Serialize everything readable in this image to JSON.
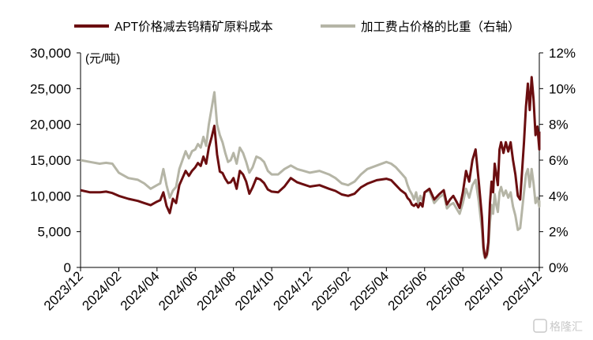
{
  "chart_data": {
    "type": "line",
    "legend": {
      "placement": "top",
      "entries": [
        "APT价格减去钨精矿原料成本",
        "加工费占价格的比重（右轴）"
      ]
    },
    "unit_label": "(元/吨)",
    "left_axis": {
      "ylim": [
        0,
        30000
      ],
      "ticks": [
        0,
        5000,
        10000,
        15000,
        20000,
        25000,
        30000
      ],
      "tick_labels": [
        "0",
        "5,000",
        "10,000",
        "15,000",
        "20,000",
        "25,000",
        "30,000"
      ]
    },
    "right_axis": {
      "ylim": [
        0,
        12
      ],
      "ticks": [
        0,
        2,
        4,
        6,
        8,
        10,
        12
      ],
      "tick_labels": [
        "0%",
        "2%",
        "4%",
        "6%",
        "8%",
        "10%",
        "12%"
      ]
    },
    "x_axis": {
      "range": [
        "2023/12",
        "2025/12"
      ],
      "tick_labels": [
        "2023/12",
        "2024/02",
        "2024/04",
        "2024/06",
        "2024/08",
        "2024/10",
        "2024/12",
        "2025/02",
        "2025/04",
        "2025/06",
        "2025/08",
        "2025/10",
        "2025/12"
      ]
    },
    "grid": false,
    "series": [
      {
        "name": "APT价格减去钨精矿原料成本",
        "axis": "left",
        "color": "#6b0e10",
        "points": [
          [
            "2023/12",
            10800
          ],
          [
            "2023/12",
            10500
          ],
          [
            "2024/01",
            10500
          ],
          [
            "2024/01",
            10600
          ],
          [
            "2024/01",
            10400
          ],
          [
            "2024/02",
            10000
          ],
          [
            "2024/02",
            9600
          ],
          [
            "2024/03",
            9300
          ],
          [
            "2024/03",
            9000
          ],
          [
            "2024/03",
            8700
          ],
          [
            "2024/04",
            9200
          ],
          [
            "2024/04",
            9400
          ],
          [
            "2024/04",
            10500
          ],
          [
            "2024/04",
            8600
          ],
          [
            "2024/04",
            7600
          ],
          [
            "2024/04",
            9600
          ],
          [
            "2024/05",
            9000
          ],
          [
            "2024/05",
            11500
          ],
          [
            "2024/05",
            12500
          ],
          [
            "2024/05",
            13500
          ],
          [
            "2024/05",
            12800
          ],
          [
            "2024/05",
            13500
          ],
          [
            "2024/06",
            14000
          ],
          [
            "2024/06",
            14600
          ],
          [
            "2024/06",
            14200
          ],
          [
            "2024/06",
            15500
          ],
          [
            "2024/06",
            14500
          ],
          [
            "2024/06",
            16800
          ],
          [
            "2024/06",
            18200
          ],
          [
            "2024/07",
            19800
          ],
          [
            "2024/07",
            15800
          ],
          [
            "2024/07",
            13400
          ],
          [
            "2024/07",
            13200
          ],
          [
            "2024/07",
            12400
          ],
          [
            "2024/07",
            11800
          ],
          [
            "2024/07",
            11900
          ],
          [
            "2024/08",
            12500
          ],
          [
            "2024/08",
            11000
          ],
          [
            "2024/08",
            13500
          ],
          [
            "2024/08",
            13000
          ],
          [
            "2024/08",
            12000
          ],
          [
            "2024/08",
            10300
          ],
          [
            "2024/09",
            11200
          ],
          [
            "2024/09",
            12500
          ],
          [
            "2024/09",
            12300
          ],
          [
            "2024/09",
            11800
          ],
          [
            "2024/09",
            10900
          ],
          [
            "2024/10",
            10600
          ],
          [
            "2024/10",
            10500
          ],
          [
            "2024/10",
            11300
          ],
          [
            "2024/11",
            12500
          ],
          [
            "2024/11",
            11900
          ],
          [
            "2024/11",
            11600
          ],
          [
            "2024/12",
            11300
          ],
          [
            "2024/12",
            11500
          ],
          [
            "2025/01",
            11000
          ],
          [
            "2025/01",
            10700
          ],
          [
            "2025/01",
            10200
          ],
          [
            "2025/02",
            10000
          ],
          [
            "2025/02",
            10300
          ],
          [
            "2025/02",
            11200
          ],
          [
            "2025/03",
            11700
          ],
          [
            "2025/03",
            12200
          ],
          [
            "2025/04",
            12400
          ],
          [
            "2025/04",
            12200
          ],
          [
            "2025/04",
            11500
          ],
          [
            "2025/04",
            10800
          ],
          [
            "2025/05",
            10300
          ],
          [
            "2025/05",
            9700
          ],
          [
            "2025/05",
            9400
          ],
          [
            "2025/05",
            8800
          ],
          [
            "2025/05",
            8600
          ],
          [
            "2025/05",
            8900
          ],
          [
            "2025/05",
            8400
          ],
          [
            "2025/05",
            9000
          ],
          [
            "2025/05",
            8500
          ],
          [
            "2025/06",
            10500
          ],
          [
            "2025/06",
            11000
          ],
          [
            "2025/06",
            9500
          ],
          [
            "2025/06",
            10200
          ],
          [
            "2025/07",
            10800
          ],
          [
            "2025/07",
            8800
          ],
          [
            "2025/07",
            9500
          ],
          [
            "2025/07",
            10000
          ],
          [
            "2025/07",
            9200
          ],
          [
            "2025/07",
            8300
          ],
          [
            "2025/08",
            10500
          ],
          [
            "2025/08",
            13500
          ],
          [
            "2025/08",
            12000
          ],
          [
            "2025/08",
            15000
          ],
          [
            "2025/08",
            16500
          ],
          [
            "2025/08",
            12000
          ],
          [
            "2025/09",
            7000
          ],
          [
            "2025/09",
            2800
          ],
          [
            "2025/09",
            1400
          ],
          [
            "2025/09",
            1800
          ],
          [
            "2025/09",
            3500
          ],
          [
            "2025/09",
            9000
          ],
          [
            "2025/09",
            12000
          ],
          [
            "2025/09",
            10500
          ],
          [
            "2025/09",
            14500
          ],
          [
            "2025/09",
            13000
          ],
          [
            "2025/09",
            11500
          ],
          [
            "2025/09",
            16500
          ],
          [
            "2025/10",
            17500
          ],
          [
            "2025/10",
            16000
          ],
          [
            "2025/10",
            17500
          ],
          [
            "2025/10",
            16200
          ],
          [
            "2025/10",
            17500
          ],
          [
            "2025/10",
            15000
          ],
          [
            "2025/10",
            13000
          ],
          [
            "2025/10",
            10000
          ],
          [
            "2025/11",
            9500
          ],
          [
            "2025/11",
            13500
          ],
          [
            "2025/11",
            17500
          ],
          [
            "2025/11",
            22500
          ],
          [
            "2025/11",
            25700
          ],
          [
            "2025/11",
            22000
          ],
          [
            "2025/11",
            26600
          ],
          [
            "2025/11",
            23500
          ],
          [
            "2025/11",
            18500
          ],
          [
            "2025/11",
            19700
          ],
          [
            "2025/12",
            16500
          ],
          [
            "2025/12",
            18000
          ],
          [
            "2025/12",
            18500
          ],
          [
            "2025/12",
            19000
          ]
        ]
      },
      {
        "name": "加工费占价格的比重（右轴）",
        "axis": "right",
        "color": "#b5b5a6",
        "points": [
          [
            "2023/12",
            6.0
          ],
          [
            "2023/12",
            5.9
          ],
          [
            "2024/01",
            5.8
          ],
          [
            "2024/01",
            5.85
          ],
          [
            "2024/01",
            5.8
          ],
          [
            "2024/02",
            5.3
          ],
          [
            "2024/02",
            5.0
          ],
          [
            "2024/03",
            4.9
          ],
          [
            "2024/03",
            4.7
          ],
          [
            "2024/03",
            4.4
          ],
          [
            "2024/04",
            4.6
          ],
          [
            "2024/04",
            4.7
          ],
          [
            "2024/04",
            5.5
          ],
          [
            "2024/04",
            4.6
          ],
          [
            "2024/04",
            3.9
          ],
          [
            "2024/04",
            4.3
          ],
          [
            "2024/05",
            4.5
          ],
          [
            "2024/05",
            5.5
          ],
          [
            "2024/05",
            6.0
          ],
          [
            "2024/05",
            6.5
          ],
          [
            "2024/05",
            6.1
          ],
          [
            "2024/05",
            6.5
          ],
          [
            "2024/06",
            6.6
          ],
          [
            "2024/06",
            6.9
          ],
          [
            "2024/06",
            6.7
          ],
          [
            "2024/06",
            7.3
          ],
          [
            "2024/06",
            6.8
          ],
          [
            "2024/06",
            8.0
          ],
          [
            "2024/06",
            8.9
          ],
          [
            "2024/07",
            9.8
          ],
          [
            "2024/07",
            8.0
          ],
          [
            "2024/07",
            7.4
          ],
          [
            "2024/07",
            7.0
          ],
          [
            "2024/07",
            6.4
          ],
          [
            "2024/07",
            5.9
          ],
          [
            "2024/07",
            6.0
          ],
          [
            "2024/08",
            6.4
          ],
          [
            "2024/08",
            5.8
          ],
          [
            "2024/08",
            6.7
          ],
          [
            "2024/08",
            6.4
          ],
          [
            "2024/08",
            5.9
          ],
          [
            "2024/08",
            5.3
          ],
          [
            "2024/09",
            5.6
          ],
          [
            "2024/09",
            6.2
          ],
          [
            "2024/09",
            6.1
          ],
          [
            "2024/09",
            5.9
          ],
          [
            "2024/09",
            5.4
          ],
          [
            "2024/10",
            5.2
          ],
          [
            "2024/10",
            5.2
          ],
          [
            "2024/10",
            5.5
          ],
          [
            "2024/11",
            5.7
          ],
          [
            "2024/11",
            5.5
          ],
          [
            "2024/11",
            5.4
          ],
          [
            "2024/12",
            5.3
          ],
          [
            "2024/12",
            5.4
          ],
          [
            "2025/01",
            5.2
          ],
          [
            "2025/01",
            5.0
          ],
          [
            "2025/01",
            4.7
          ],
          [
            "2025/02",
            4.6
          ],
          [
            "2025/02",
            4.8
          ],
          [
            "2025/02",
            5.2
          ],
          [
            "2025/03",
            5.5
          ],
          [
            "2025/03",
            5.7
          ],
          [
            "2025/04",
            5.9
          ],
          [
            "2025/04",
            5.8
          ],
          [
            "2025/04",
            5.6
          ],
          [
            "2025/04",
            5.3
          ],
          [
            "2025/05",
            5.0
          ],
          [
            "2025/05",
            4.6
          ],
          [
            "2025/05",
            4.3
          ],
          [
            "2025/05",
            4.1
          ],
          [
            "2025/05",
            3.8
          ],
          [
            "2025/05",
            4.2
          ],
          [
            "2025/05",
            3.6
          ],
          [
            "2025/05",
            4.0
          ],
          [
            "2025/05",
            3.7
          ],
          [
            "2025/06",
            4.2
          ],
          [
            "2025/06",
            4.3
          ],
          [
            "2025/06",
            3.6
          ],
          [
            "2025/06",
            3.9
          ],
          [
            "2025/07",
            4.1
          ],
          [
            "2025/07",
            3.3
          ],
          [
            "2025/07",
            3.5
          ],
          [
            "2025/07",
            3.6
          ],
          [
            "2025/07",
            3.3
          ],
          [
            "2025/07",
            3.0
          ],
          [
            "2025/08",
            3.6
          ],
          [
            "2025/08",
            4.4
          ],
          [
            "2025/08",
            3.9
          ],
          [
            "2025/08",
            4.6
          ],
          [
            "2025/08",
            4.9
          ],
          [
            "2025/08",
            3.7
          ],
          [
            "2025/09",
            2.1
          ],
          [
            "2025/09",
            0.8
          ],
          [
            "2025/09",
            0.5
          ],
          [
            "2025/09",
            0.6
          ],
          [
            "2025/09",
            1.0
          ],
          [
            "2025/09",
            2.5
          ],
          [
            "2025/09",
            3.5
          ],
          [
            "2025/09",
            3.0
          ],
          [
            "2025/09",
            4.1
          ],
          [
            "2025/09",
            3.5
          ],
          [
            "2025/09",
            3.1
          ],
          [
            "2025/09",
            4.2
          ],
          [
            "2025/10",
            4.5
          ],
          [
            "2025/10",
            4.0
          ],
          [
            "2025/10",
            4.3
          ],
          [
            "2025/10",
            3.9
          ],
          [
            "2025/10",
            4.2
          ],
          [
            "2025/10",
            3.4
          ],
          [
            "2025/10",
            2.9
          ],
          [
            "2025/10",
            2.1
          ],
          [
            "2025/11",
            2.2
          ],
          [
            "2025/11",
            3.2
          ],
          [
            "2025/11",
            4.2
          ],
          [
            "2025/11",
            5.2
          ],
          [
            "2025/11",
            5.5
          ],
          [
            "2025/11",
            4.5
          ],
          [
            "2025/11",
            5.5
          ],
          [
            "2025/11",
            4.7
          ],
          [
            "2025/11",
            3.6
          ],
          [
            "2025/11",
            3.9
          ],
          [
            "2025/12",
            3.4
          ],
          [
            "2025/12",
            3.7
          ],
          [
            "2025/12",
            3.6
          ],
          [
            "2025/12",
            3.7
          ]
        ]
      }
    ]
  },
  "watermark": {
    "icon": "gelonghui-logo-icon",
    "text": "格隆汇"
  }
}
